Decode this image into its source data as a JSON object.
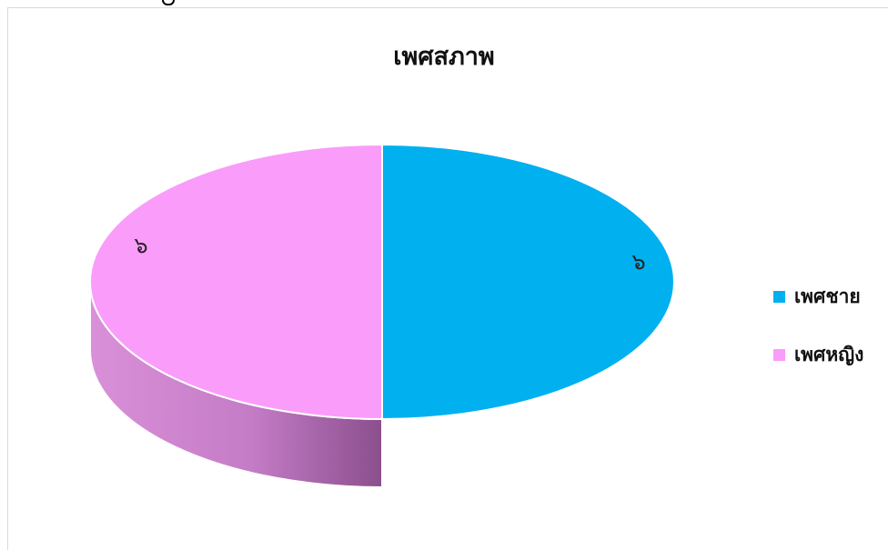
{
  "chart_data": {
    "type": "pie",
    "title": "เพศสภาพ",
    "categories": [
      "เพศชาย",
      "เพศหญิง"
    ],
    "values": [
      6,
      6
    ],
    "data_labels": [
      "๖",
      "๖"
    ],
    "colors": {
      "เพศชาย": "#00b0ef",
      "เพศหญิง": "#fa9cf9"
    },
    "legend_position": "right",
    "three_d": true
  }
}
